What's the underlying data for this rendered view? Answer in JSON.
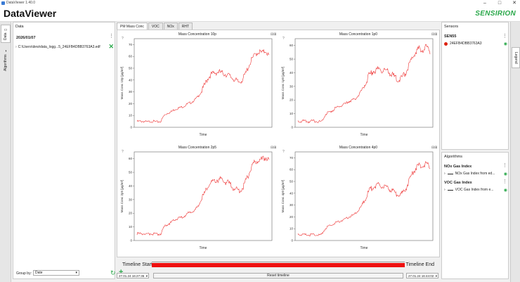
{
  "window": {
    "title": "DataViewer 1.40.0"
  },
  "header": {
    "app_name": "DataViewer",
    "brand": "SENSIRION"
  },
  "left_tabs": [
    {
      "label": "Data",
      "active": true
    },
    {
      "label": "Algorithms",
      "active": false
    }
  ],
  "data_panel": {
    "title": "Data",
    "date": "2026/01/07",
    "file": "C:\\Users\\dew\\data_logg...5_24EFB4DBB3763A3.edf",
    "group_by_label": "Group by:",
    "group_by_value": "Date"
  },
  "tabs": [
    {
      "label": "PM Mass Conc",
      "active": true
    },
    {
      "label": "VOC",
      "active": false
    },
    {
      "label": "NOx",
      "active": false
    },
    {
      "label": "RHT",
      "active": false
    }
  ],
  "charts": [
    {
      "title": "Mass Concentration 10p",
      "ylabel": "Mass Conc 10p [µg/m³]",
      "xlabel": "Time",
      "yticks": [
        0,
        10,
        20,
        30,
        40,
        50,
        60,
        70
      ]
    },
    {
      "title": "Mass Concentration 1p0",
      "ylabel": "Mass Conc 1p0 [µg/m³]",
      "xlabel": "Time",
      "yticks": [
        0,
        10,
        20,
        30,
        40,
        50,
        60
      ]
    },
    {
      "title": "Mass Concentration 2p5",
      "ylabel": "Mass Conc 2p5 [µg/m³]",
      "xlabel": "Time",
      "yticks": [
        0,
        10,
        20,
        30,
        40,
        50,
        60
      ]
    },
    {
      "title": "Mass Concentration 4p0",
      "ylabel": "Mass Conc 4p0 [µg/m³]",
      "xlabel": "Time",
      "yticks": [
        0,
        10,
        20,
        30,
        40,
        50,
        60,
        70
      ]
    }
  ],
  "chart_data": [
    {
      "type": "line",
      "title": "Mass Concentration 10p",
      "xlabel": "Time",
      "ylabel": "Mass Conc 10p [µg/m³]",
      "ylim": [
        0,
        75
      ],
      "series": [
        {
          "values": [
            5,
            5,
            5,
            4.5,
            5,
            5,
            4.5,
            5,
            10,
            12,
            13,
            15,
            16,
            17,
            18,
            20,
            21,
            23,
            26,
            30,
            36,
            42,
            45,
            46,
            47,
            46,
            45,
            44,
            42,
            40,
            38,
            40,
            45,
            52,
            58,
            62,
            64,
            63,
            65,
            60
          ]
        }
      ]
    },
    {
      "type": "line",
      "title": "Mass Concentration 1p0",
      "xlabel": "Time",
      "ylabel": "Mass Conc 1p0 [µg/m³]",
      "ylim": [
        0,
        65
      ],
      "series": [
        {
          "values": [
            4.5,
            4.5,
            4.5,
            4,
            4.5,
            4.5,
            4,
            4.5,
            9,
            11,
            12,
            14,
            15,
            16,
            17,
            19,
            20,
            21,
            24,
            28,
            33,
            38,
            41,
            42,
            43,
            42,
            41,
            40,
            38,
            36,
            35,
            37,
            41,
            47,
            52,
            56,
            58,
            57,
            59,
            56
          ]
        }
      ]
    },
    {
      "type": "line",
      "title": "Mass Concentration 2p5",
      "xlabel": "Time",
      "ylabel": "Mass Conc 2p5 [µg/m³]",
      "ylim": [
        0,
        65
      ],
      "series": [
        {
          "values": [
            5,
            5,
            5,
            4.5,
            5,
            5,
            4.5,
            5,
            10,
            12,
            13,
            15,
            16,
            17,
            18,
            20,
            21,
            22,
            25,
            30,
            35,
            40,
            43,
            44,
            45,
            44,
            43,
            42,
            40,
            38,
            36,
            38,
            43,
            49,
            55,
            58,
            60,
            59,
            61,
            58
          ]
        }
      ]
    },
    {
      "type": "line",
      "title": "Mass Concentration 4p0",
      "xlabel": "Time",
      "ylabel": "Mass Conc 4p0 [µg/m³]",
      "ylim": [
        0,
        75
      ],
      "series": [
        {
          "values": [
            5,
            5,
            5,
            4.5,
            5,
            5,
            4.5,
            5,
            10,
            12,
            13,
            15,
            16,
            17,
            18,
            20,
            21,
            23,
            26,
            30,
            36,
            42,
            45,
            46,
            47,
            46,
            45,
            44,
            42,
            40,
            38,
            40,
            45,
            52,
            58,
            62,
            64,
            63,
            65,
            61
          ]
        }
      ]
    }
  ],
  "timeline": {
    "start_label": "Timeline Start",
    "end_label": "Timeline End",
    "start_value": "27.01.24 16:27:36",
    "end_value": "27.01.24 16:44:02",
    "reset_label": "Reset timeline"
  },
  "sensors_panel": {
    "title": "Sensors",
    "group": "SEN55",
    "sensor": "24EFB4DBB3763A3",
    "sensor_color": "#dd2222"
  },
  "algorithms_panel": {
    "title": "Algorithms",
    "groups": [
      {
        "title": "NOx Gas Index",
        "item": "NOx Gas Index from ed..."
      },
      {
        "title": "VOC Gas Index",
        "item": "VOC Gas Index from e..."
      }
    ]
  },
  "legend_tab": {
    "label": "Legend"
  },
  "colors": {
    "accent": "#2aa84a",
    "series": "#ee3333",
    "timeline": "#ee1111"
  }
}
